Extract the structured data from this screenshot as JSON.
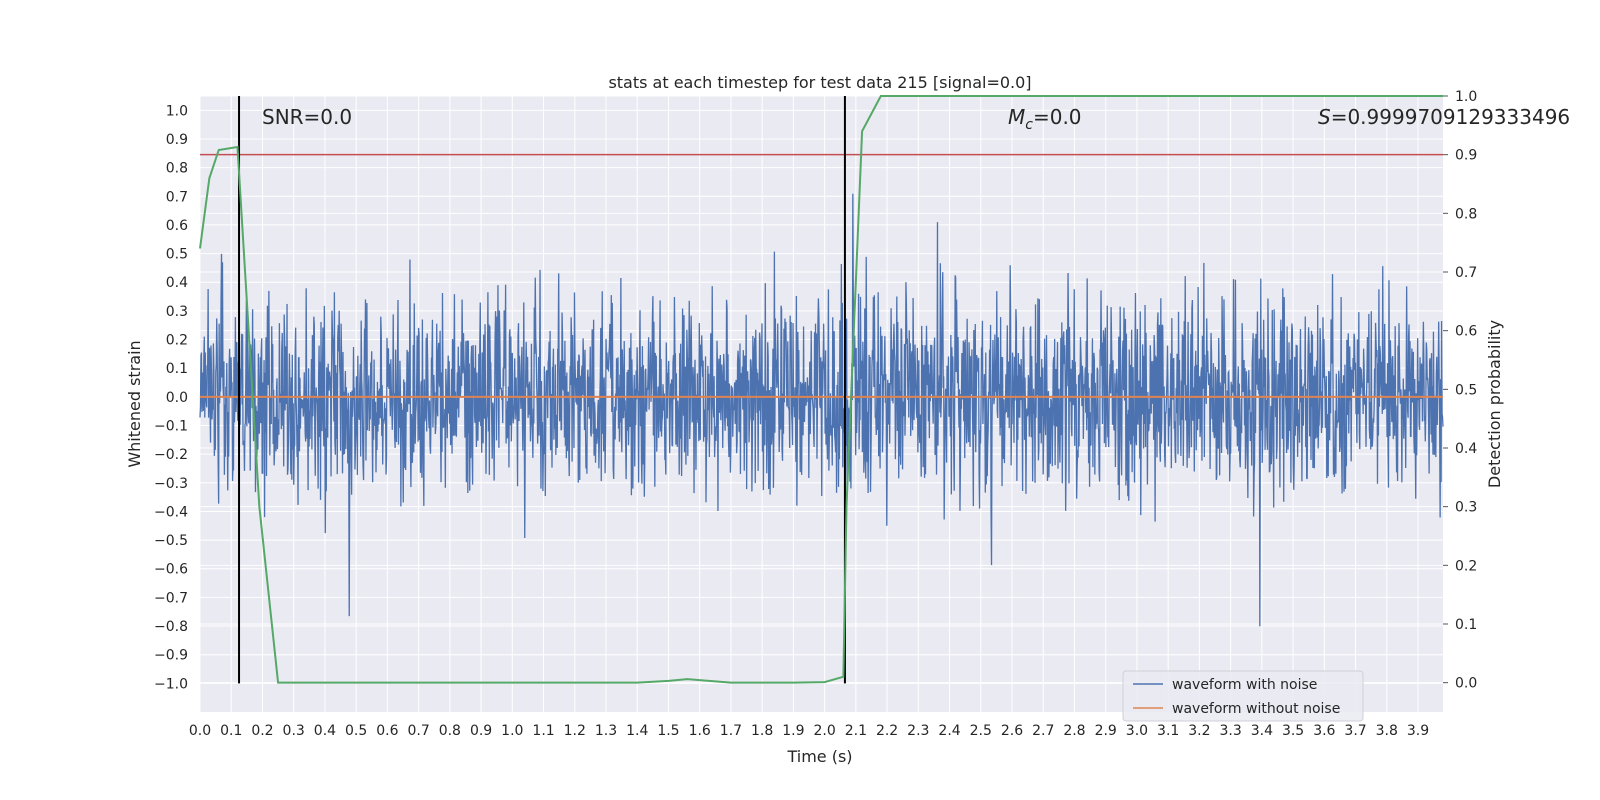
{
  "chart_data": {
    "type": "line",
    "title": "stats at each timestep for test data 215 [signal=0.0]",
    "xlabel": "Time (s)",
    "ylabel": "Whitened strain",
    "y2label": "Detection probability",
    "xlim": [
      0.0,
      3.98
    ],
    "ylim": [
      -1.1,
      1.05
    ],
    "y2lim": [
      -0.05,
      1.0
    ],
    "x_ticks": [
      "0.0",
      "0.1",
      "0.2",
      "0.3",
      "0.4",
      "0.5",
      "0.6",
      "0.7",
      "0.8",
      "0.9",
      "1.0",
      "1.1",
      "1.2",
      "1.3",
      "1.4",
      "1.5",
      "1.6",
      "1.7",
      "1.8",
      "1.9",
      "2.0",
      "2.1",
      "2.2",
      "2.3",
      "2.4",
      "2.5",
      "2.6",
      "2.7",
      "2.8",
      "2.9",
      "3.0",
      "3.1",
      "3.2",
      "3.3",
      "3.4",
      "3.5",
      "3.6",
      "3.7",
      "3.8",
      "3.9"
    ],
    "y_ticks": [
      "1.0",
      "0.9",
      "0.8",
      "0.7",
      "0.6",
      "0.5",
      "0.4",
      "0.3",
      "0.2",
      "0.1",
      "0.0",
      "−0.1",
      "−0.2",
      "−0.3",
      "−0.4",
      "−0.5",
      "−0.6",
      "−0.7",
      "−0.8",
      "−0.9",
      "−1.0"
    ],
    "y2_ticks": [
      "1.0",
      "0.9",
      "0.8",
      "0.7",
      "0.6",
      "0.5",
      "0.4",
      "0.3",
      "0.2",
      "0.1",
      "0.0"
    ],
    "grid": true,
    "legend_position": "lower-right",
    "annotations": {
      "snr": "SNR=0.0",
      "mc_symbol": "M",
      "mc_sub": "c",
      "mc_value": "=0.0",
      "s_symbol": "S",
      "s_value": "=0.9999709129333496"
    },
    "threshold": 0.9,
    "vlines": [
      0.125,
      2.065
    ],
    "series": [
      {
        "name": "waveform with noise",
        "color": "#4c72b0",
        "kind": "noise",
        "amplitude_estimate": 0.7,
        "x_range": [
          0.0,
          3.98
        ]
      },
      {
        "name": "waveform without noise",
        "color": "#dd8452",
        "x": [
          0.0,
          3.98
        ],
        "y": [
          0.0,
          0.0
        ]
      },
      {
        "name": "",
        "color": "#55a868",
        "axis": "right",
        "x": [
          0.0,
          0.03,
          0.06,
          0.12,
          0.19,
          0.25,
          0.3,
          0.5,
          1.0,
          1.4,
          1.5,
          1.56,
          1.7,
          1.9,
          2.0,
          2.06,
          2.07,
          2.12,
          2.18,
          2.5,
          3.0,
          3.5,
          3.98
        ],
        "y": [
          0.74,
          0.86,
          0.908,
          0.913,
          0.3,
          0.0,
          0.0,
          0.0,
          0.0,
          0.0,
          0.003,
          0.006,
          0.0,
          0.0,
          0.001,
          0.01,
          0.3,
          0.94,
          1.0,
          1.0,
          1.0,
          1.0,
          1.0
        ]
      }
    ],
    "colors": {
      "background": "#eaeaf2",
      "grid": "#ffffff",
      "threshold_line": "#c44e52",
      "vline": "#000000"
    }
  }
}
